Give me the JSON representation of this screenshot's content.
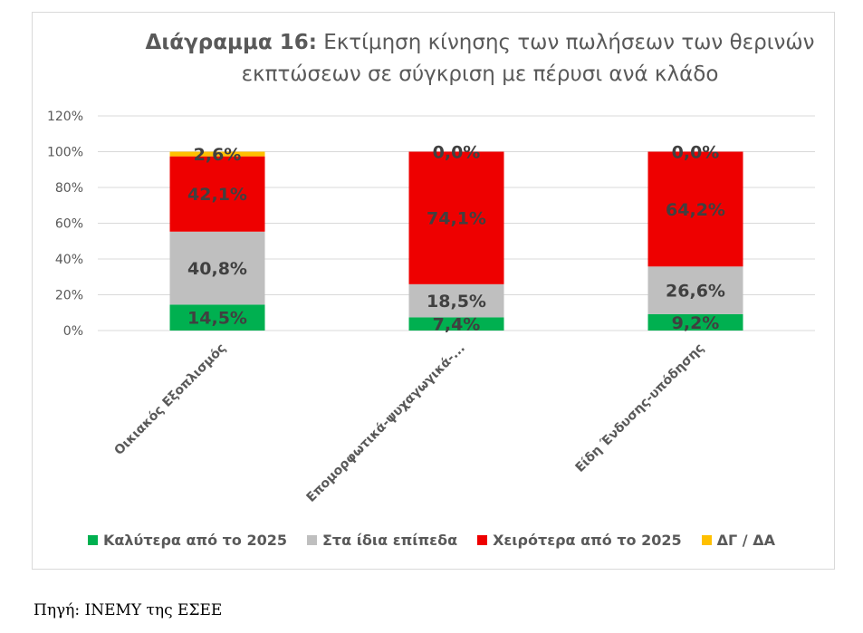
{
  "chart_title": {
    "bold_part": "Διάγραμμα 16:",
    "rest": "Εκτίμηση κίνησης των πωλήσεων των θερινών εκπτώσεων σε σύγκριση με πέρυσι ανά κλάδο"
  },
  "source": "Πηγή: ΙΝΕΜΥ της ΕΣΕΕ",
  "chart_data": {
    "type": "bar",
    "stacked": true,
    "categories": [
      "Οικιακός Εξοπλισμός",
      "Επομορφωτικά-ψυχαγωγικά-...",
      "Είδη Ένδυσης-υπόδησης"
    ],
    "series": [
      {
        "name": "Καλύτερα από το 2025",
        "values": [
          14.5,
          7.4,
          9.2
        ],
        "labels": [
          "14,5%",
          "7,4%",
          "9,2%"
        ],
        "color": "#00b050"
      },
      {
        "name": "Στα ίδια επίπεδα",
        "values": [
          40.8,
          18.5,
          26.6
        ],
        "labels": [
          "40,8%",
          "18,5%",
          "26,6%"
        ],
        "color": "#bfbfbf"
      },
      {
        "name": "Χειρότερα από το 2025",
        "values": [
          42.1,
          74.1,
          64.2
        ],
        "labels": [
          "42,1%",
          "74,1%",
          "64,2%"
        ],
        "color": "#ee0000"
      },
      {
        "name": "ΔΓ / ΔΑ",
        "values": [
          2.6,
          0.0,
          0.0
        ],
        "labels": [
          "2,6%",
          "0,0%",
          "0,0%"
        ],
        "color": "#ffc000"
      }
    ],
    "ylim": [
      0,
      120
    ],
    "yticks": [
      "0%",
      "20%",
      "40%",
      "60%",
      "80%",
      "100%",
      "120%"
    ],
    "grid": true,
    "legend_position": "bottom"
  }
}
